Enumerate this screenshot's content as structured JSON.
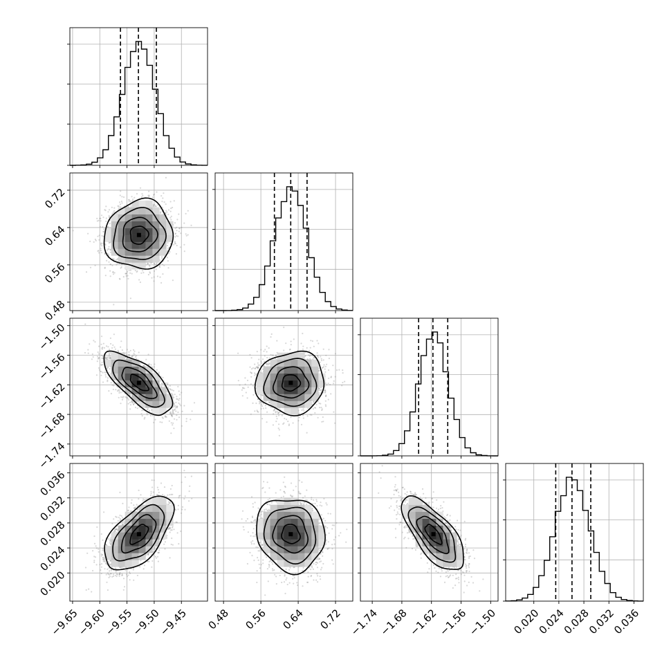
{
  "chart_data": {
    "type": "corner",
    "parameters": [
      {
        "ticks": [
          -9.65,
          -9.6,
          -9.55,
          -9.5,
          -9.45
        ],
        "tick_labels": [
          "−9.65",
          "−9.60",
          "−9.55",
          "−9.50",
          "−9.45"
        ],
        "range": [
          -9.655,
          -9.402
        ],
        "mean": -9.528,
        "sd": 0.03,
        "quantiles": [
          -9.562,
          -9.529,
          -9.496
        ],
        "cov_sign": 0
      },
      {
        "ticks": [
          0.48,
          0.56,
          0.64,
          0.72
        ],
        "tick_labels": [
          "0.48",
          "0.56",
          "0.64",
          "0.72"
        ],
        "range": [
          0.462,
          0.757
        ],
        "mean": 0.624,
        "sd": 0.035,
        "quantiles": [
          0.589,
          0.624,
          0.659
        ],
        "cov_sign": 0
      },
      {
        "ticks": [
          -1.74,
          -1.68,
          -1.62,
          -1.56,
          -1.5
        ],
        "tick_labels": [
          "−1.74",
          "−1.68",
          "−1.62",
          "−1.56",
          "−1.50"
        ],
        "range": [
          -1.764,
          -1.485
        ],
        "mean": -1.616,
        "sd": 0.03,
        "quantiles": [
          -1.646,
          -1.617,
          -1.587
        ],
        "cov_sign": 0
      },
      {
        "ticks": [
          0.02,
          0.024,
          0.028,
          0.032,
          0.036
        ],
        "tick_labels": [
          "0.020",
          "0.024",
          "0.028",
          "0.032",
          "0.036"
        ],
        "range": [
          0.0155,
          0.0375
        ],
        "mean": 0.0262,
        "sd": 0.0028,
        "quantiles": [
          0.0235,
          0.0261,
          0.0291
        ],
        "cov_sign": 0
      }
    ],
    "correlations": [
      {
        "i": 1,
        "j": 0,
        "rho": 0.05
      },
      {
        "i": 2,
        "j": 0,
        "rho": -0.7
      },
      {
        "i": 2,
        "j": 1,
        "rho": 0.05
      },
      {
        "i": 3,
        "j": 0,
        "rho": 0.6
      },
      {
        "i": 3,
        "j": 1,
        "rho": -0.1
      },
      {
        "i": 3,
        "j": 2,
        "rho": -0.7
      }
    ],
    "contour_levels_sigma": [
      0.5,
      1.0,
      1.5,
      2.0
    ],
    "histogram_bins": 20,
    "grid": true,
    "line_color": "#000000",
    "point_color": "#8c8c8c"
  }
}
